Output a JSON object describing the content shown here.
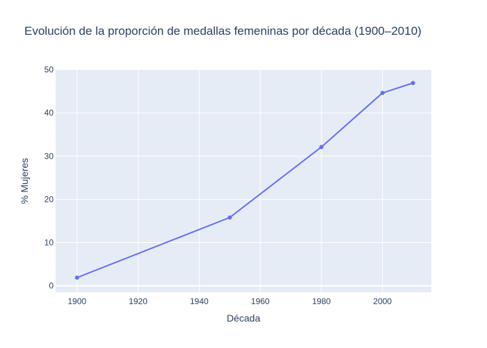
{
  "chart_data": {
    "type": "line",
    "title": "Evolución de la proporción de medallas femeninas por década (1900–2010)",
    "xlabel": "Década",
    "ylabel": "% Mujeres",
    "x": [
      1900,
      1950,
      1980,
      2000,
      2010
    ],
    "series": [
      {
        "values": [
          1.9,
          15.8,
          32.1,
          44.6,
          46.9
        ],
        "color": "#636efa"
      }
    ],
    "xlim": [
      1893,
      2016
    ],
    "ylim": [
      -1.5,
      50
    ],
    "xticks": [
      1900,
      1920,
      1940,
      1960,
      1980,
      2000
    ],
    "yticks": [
      0,
      10,
      20,
      30,
      40,
      50
    ],
    "grid": true,
    "plot_bg": "#e5ecf6",
    "grid_color": "#ffffff",
    "text_color": "#2a3f5f"
  }
}
